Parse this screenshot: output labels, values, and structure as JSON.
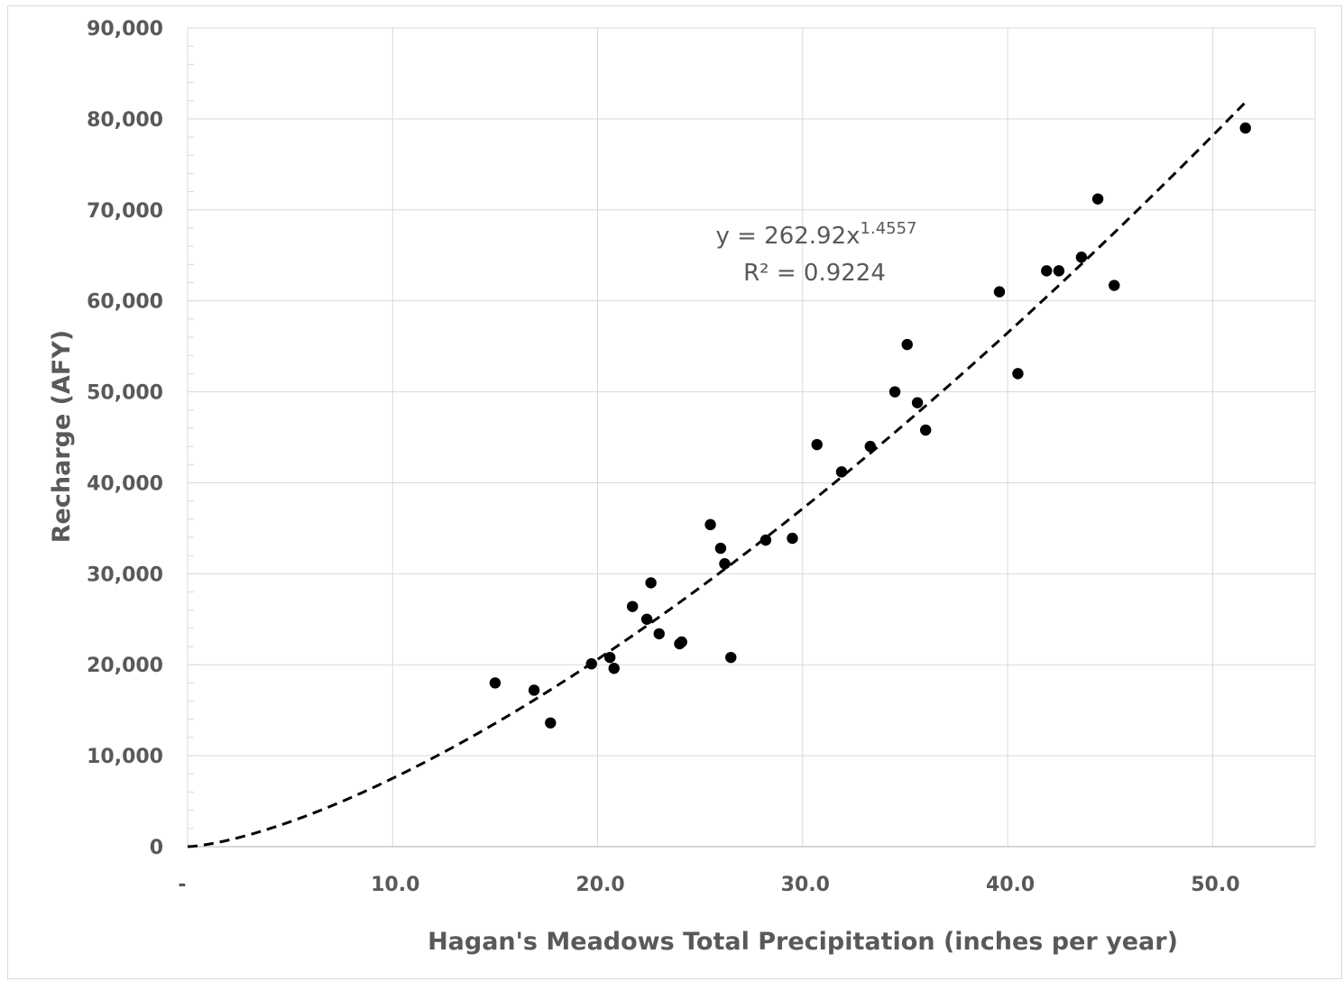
{
  "chart_data": {
    "type": "scatter",
    "title": "",
    "xlabel": "Hagan's Meadows Total Precipitation (inches per year)",
    "ylabel": "Recharge (AFY)",
    "xlim": [
      0,
      55
    ],
    "ylim": [
      0,
      90000
    ],
    "x_ticks": [
      0,
      10,
      20,
      30,
      40,
      50
    ],
    "x_tick_labels": [
      "-",
      "10.0",
      "20.0",
      "30.0",
      "40.0",
      "50.0"
    ],
    "y_ticks": [
      0,
      10000,
      20000,
      30000,
      40000,
      50000,
      60000,
      70000,
      80000,
      90000
    ],
    "y_tick_labels": [
      "0",
      "10,000",
      "20,000",
      "30,000",
      "40,000",
      "50,000",
      "60,000",
      "70,000",
      "80,000",
      "90,000"
    ],
    "grid": true,
    "legend": "none",
    "series": [
      {
        "marker_color": "#000000",
        "points": [
          [
            15.0,
            18000
          ],
          [
            16.9,
            17200
          ],
          [
            17.7,
            13600
          ],
          [
            19.7,
            20100
          ],
          [
            20.6,
            20800
          ],
          [
            20.8,
            19600
          ],
          [
            21.7,
            26400
          ],
          [
            22.4,
            25000
          ],
          [
            22.6,
            29000
          ],
          [
            23.0,
            23400
          ],
          [
            24.0,
            22300
          ],
          [
            24.1,
            22500
          ],
          [
            25.5,
            35400
          ],
          [
            26.0,
            32800
          ],
          [
            26.2,
            31100
          ],
          [
            26.5,
            20800
          ],
          [
            28.2,
            33700
          ],
          [
            29.5,
            33900
          ],
          [
            30.7,
            44200
          ],
          [
            31.9,
            41200
          ],
          [
            33.3,
            44000
          ],
          [
            34.5,
            50000
          ],
          [
            35.1,
            55200
          ],
          [
            35.6,
            48800
          ],
          [
            36.0,
            45800
          ],
          [
            39.6,
            61000
          ],
          [
            40.5,
            52000
          ],
          [
            41.9,
            63300
          ],
          [
            42.5,
            63300
          ],
          [
            43.6,
            64800
          ],
          [
            44.4,
            71200
          ],
          [
            45.2,
            61700
          ],
          [
            51.6,
            79000
          ]
        ]
      }
    ],
    "trendline": {
      "type": "power",
      "coefficient": 262.92,
      "exponent": 1.4557,
      "x_range": [
        0,
        51.6
      ],
      "style": "dashed",
      "color": "#000000"
    },
    "equation": {
      "base": "y = 262.92x",
      "exponent": "1.4557",
      "r2_label": "R² = 0.9224"
    }
  }
}
